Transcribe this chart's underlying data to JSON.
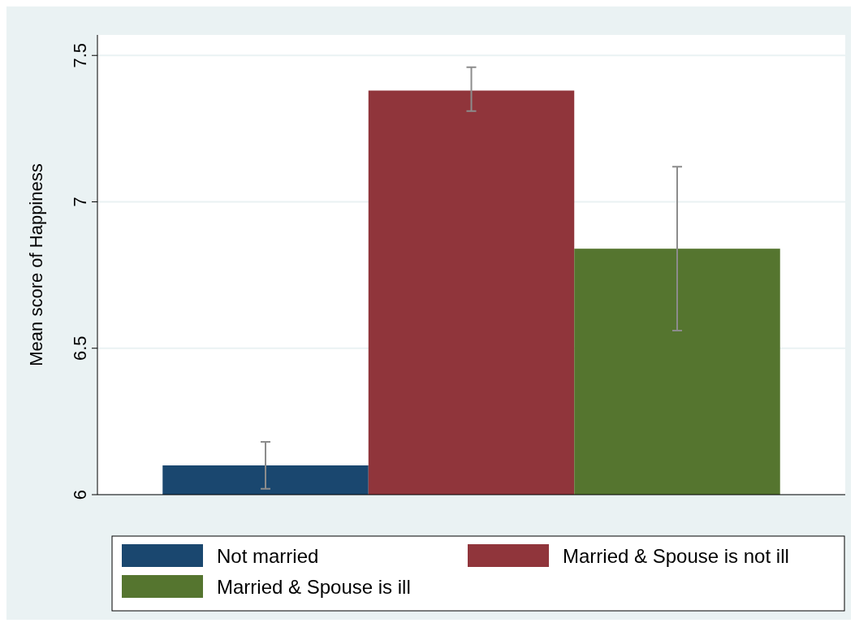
{
  "chart_data": {
    "type": "bar",
    "ylabel": "Mean score of Happiness",
    "categories": [
      null
    ],
    "series": [
      {
        "name": "Not married",
        "color": "#1a476f",
        "values": [
          6.1
        ],
        "errors": [
          [
            6.02,
            6.18
          ]
        ]
      },
      {
        "name": "Married & Spouse is not ill",
        "color": "#90353b",
        "values": [
          7.38
        ],
        "errors": [
          [
            7.31,
            7.46
          ]
        ]
      },
      {
        "name": "Married & Spouse is ill",
        "color": "#55752f",
        "values": [
          6.84
        ],
        "errors": [
          [
            6.56,
            7.12
          ]
        ]
      }
    ],
    "ylim": [
      6,
      7.57
    ],
    "yticks": [
      6,
      6.5,
      7,
      7.5
    ],
    "grid": "y",
    "legend": "bottom"
  }
}
